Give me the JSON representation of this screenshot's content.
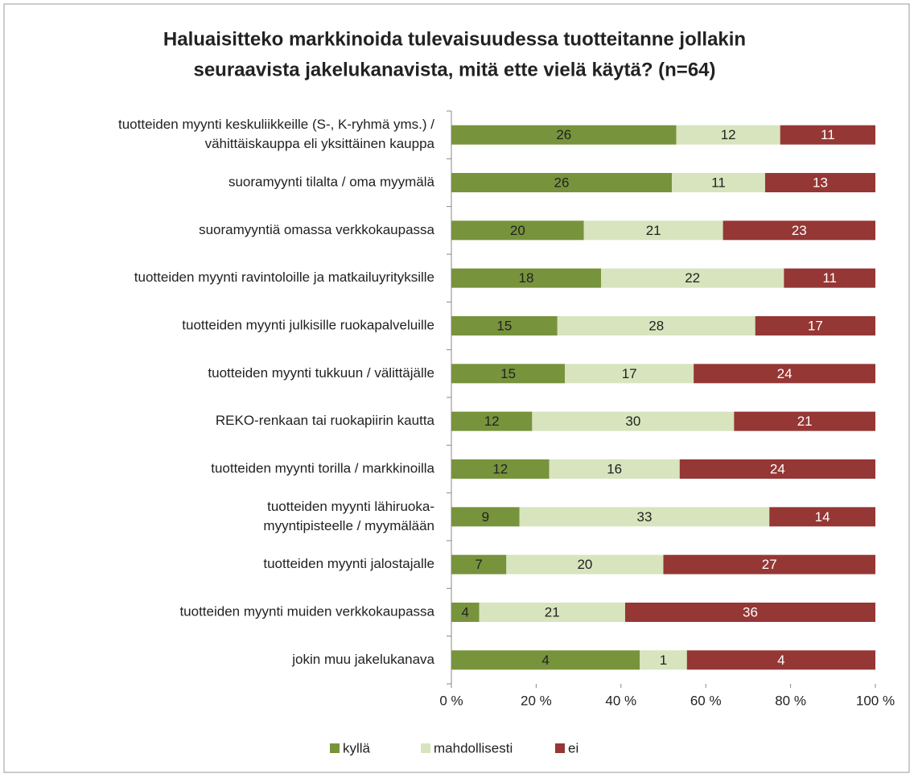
{
  "chart_data": {
    "type": "bar",
    "orientation": "horizontal",
    "stacked": "percent",
    "title": [
      "Haluaisitteko markkinoida tulevaisuudessa tuotteitanne jollakin",
      "seuraavista jakelukanavista, mitä ette vielä käytä? (n=64)"
    ],
    "categories": [
      [
        "tuotteiden myynti keskuliikkeille (S-, K-ryhmä yms.) /",
        "vähittäiskauppa eli yksittäinen kauppa"
      ],
      [
        "suoramyynti tilalta / oma myymälä"
      ],
      [
        "suoramyyntiä omassa verkkokaupassa"
      ],
      [
        "tuotteiden myynti ravintoloille ja matkailuyrityksille"
      ],
      [
        "tuotteiden myynti julkisille ruokapalveluille"
      ],
      [
        "tuotteiden myynti tukkuun / välittäjälle"
      ],
      [
        "REKO-renkaan tai ruokapiirin kautta"
      ],
      [
        "tuotteiden myynti torilla / markkinoilla"
      ],
      [
        "tuotteiden myynti lähiruoka-",
        "myyntipisteelle / myymälään"
      ],
      [
        "tuotteiden myynti jalostajalle"
      ],
      [
        "tuotteiden myynti muiden verkkokaupassa"
      ],
      [
        "jokin muu jakelukanava"
      ]
    ],
    "series": [
      {
        "name": "kyllä",
        "color": "#77933c",
        "values": [
          26,
          26,
          20,
          18,
          15,
          15,
          12,
          12,
          9,
          7,
          4,
          4
        ]
      },
      {
        "name": "mahdollisesti",
        "color": "#d7e4bd",
        "values": [
          12,
          11,
          21,
          22,
          28,
          17,
          30,
          16,
          33,
          20,
          21,
          1
        ]
      },
      {
        "name": "ei",
        "color": "#953735",
        "values": [
          11,
          13,
          23,
          11,
          17,
          24,
          21,
          24,
          14,
          27,
          36,
          4
        ]
      }
    ],
    "xlim": [
      0,
      100
    ],
    "xticks": [
      {
        "value": 0,
        "label": "0 %"
      },
      {
        "value": 20,
        "label": "20 %"
      },
      {
        "value": 40,
        "label": "40 %"
      },
      {
        "value": 60,
        "label": "60 %"
      },
      {
        "value": 80,
        "label": "80 %"
      },
      {
        "value": 100,
        "label": "100 %"
      }
    ],
    "legend": "bottom"
  }
}
